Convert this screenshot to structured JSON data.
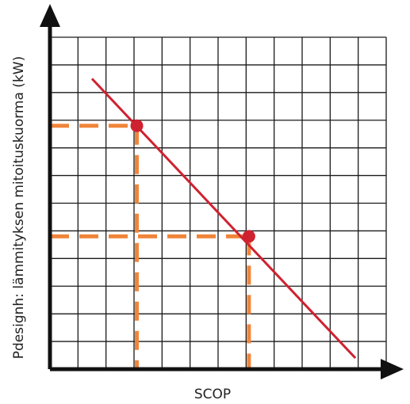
{
  "chart_data": {
    "type": "line",
    "title": "",
    "xlabel": "SCOP",
    "ylabel": "Pdesignh: lämmityksen mitoituskuorma (kW)",
    "grid": true,
    "axis_ticks": "none",
    "x_grid_divisions": 12,
    "y_grid_divisions": 12,
    "xlim": [
      0,
      12
    ],
    "ylim": [
      0,
      12
    ],
    "series": [
      {
        "x": [
          1.5,
          10.9
        ],
        "y": [
          10.5,
          0.4
        ]
      }
    ],
    "highlighted_points": [
      {
        "x": 3.1,
        "y": 8.8
      },
      {
        "x": 7.1,
        "y": 4.8
      }
    ],
    "colors": {
      "line": "#cf2230",
      "points": "#cf2230",
      "guides": "#f0853a",
      "axes": "#111111",
      "grid": "#1a1a1a"
    }
  }
}
